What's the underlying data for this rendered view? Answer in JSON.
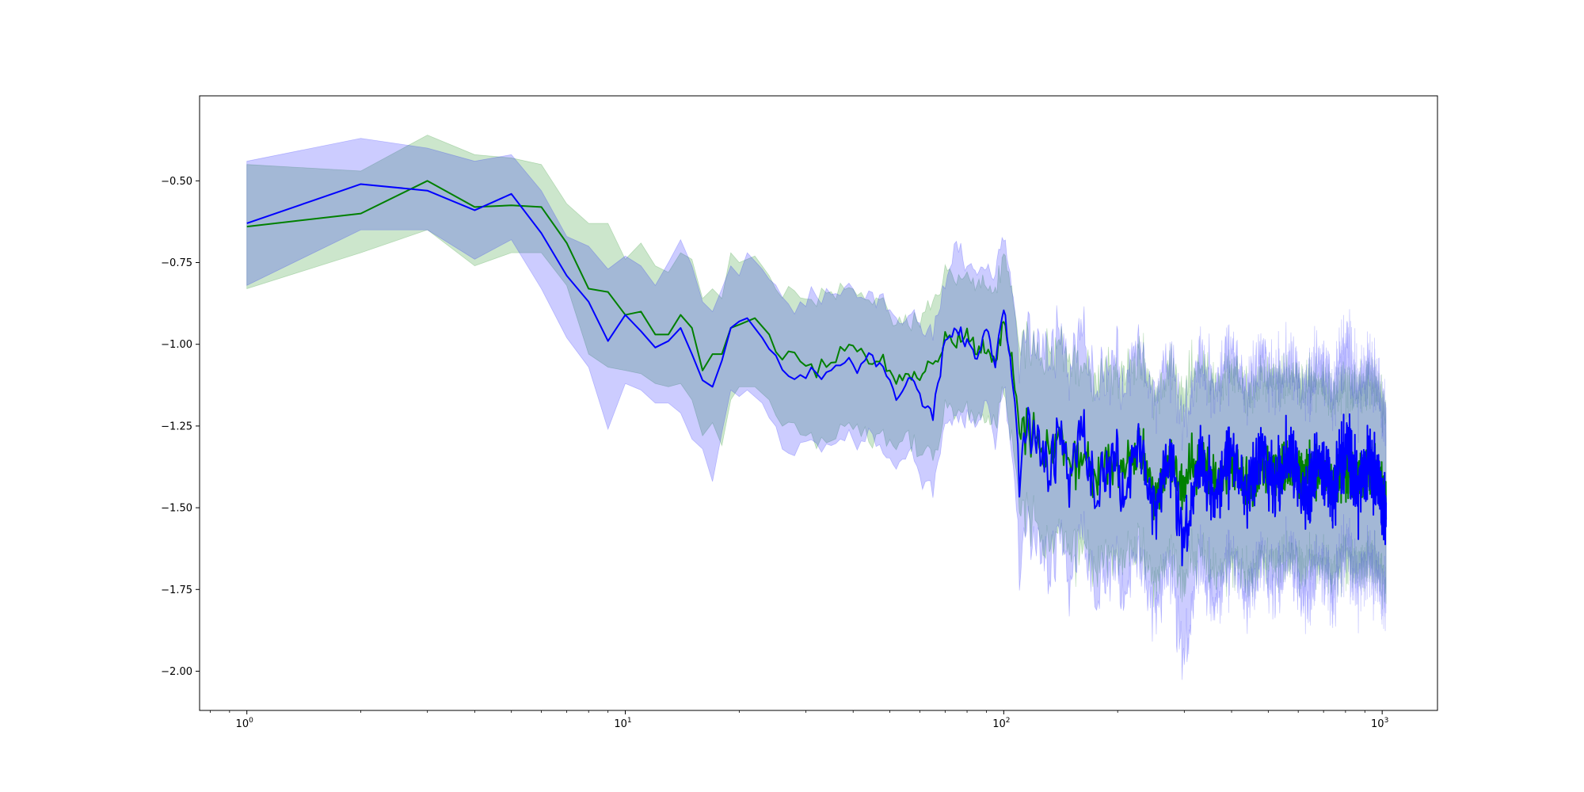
{
  "chart_data": {
    "type": "line",
    "title": "",
    "xlabel": "",
    "ylabel": "",
    "x_scale": "log",
    "xlim": [
      0.75,
      1400
    ],
    "ylim": [
      -2.12,
      -0.24
    ],
    "grid": false,
    "legend": "none",
    "x_ticks": [
      {
        "value": 1,
        "base": "10",
        "exp": "0"
      },
      {
        "value": 10,
        "base": "10",
        "exp": "1"
      },
      {
        "value": 100,
        "base": "10",
        "exp": "2"
      },
      {
        "value": 1000,
        "base": "10",
        "exp": "3"
      }
    ],
    "y_ticks": [
      {
        "value": -0.5,
        "label": "−0.50"
      },
      {
        "value": -0.75,
        "label": "−0.75"
      },
      {
        "value": -1.0,
        "label": "−1.00"
      },
      {
        "value": -1.25,
        "label": "−1.25"
      },
      {
        "value": -1.5,
        "label": "−1.50"
      },
      {
        "value": -1.75,
        "label": "−1.75"
      },
      {
        "value": -2.0,
        "label": "−2.00"
      }
    ],
    "x_range": [
      1,
      1024
    ],
    "series": [
      {
        "color": "#008000",
        "band_color": "#008000",
        "band_opacity": 0.2,
        "points": [
          [
            1,
            -0.64,
            -0.45,
            -0.83
          ],
          [
            2,
            -0.6,
            -0.47,
            -0.72
          ],
          [
            3,
            -0.5,
            -0.36,
            -0.65
          ],
          [
            4,
            -0.58,
            -0.42,
            -0.76
          ],
          [
            5,
            -0.575,
            -0.43,
            -0.72
          ],
          [
            6,
            -0.58,
            -0.45,
            -0.72
          ],
          [
            7,
            -0.69,
            -0.57,
            -0.82
          ],
          [
            8,
            -0.83,
            -0.63,
            -1.03
          ],
          [
            9,
            -0.84,
            -0.63,
            -1.07
          ],
          [
            10,
            -0.91,
            -0.74,
            -1.08
          ],
          [
            11,
            -0.9,
            -0.69,
            -1.09
          ],
          [
            12,
            -0.97,
            -0.76,
            -1.12
          ],
          [
            13,
            -0.97,
            -0.78,
            -1.13
          ],
          [
            14,
            -0.91,
            -0.72,
            -1.12
          ],
          [
            15,
            -0.95,
            -0.74,
            -1.17
          ],
          [
            16,
            -1.08,
            -0.86,
            -1.28
          ],
          [
            17,
            -1.03,
            -0.83,
            -1.24
          ],
          [
            18,
            -1.03,
            -0.86,
            -1.31
          ],
          [
            19,
            -0.95,
            -0.72,
            -1.17
          ],
          [
            20,
            -0.94,
            -0.75,
            -1.13
          ],
          [
            22,
            -0.92,
            -0.73,
            -1.13
          ],
          [
            24,
            -0.97,
            -0.79,
            -1.17
          ],
          [
            26,
            -1.05,
            -0.86,
            -1.26
          ],
          [
            28,
            -1.03,
            -0.84,
            -1.24
          ],
          [
            30,
            -1.06,
            -0.87,
            -1.28
          ],
          [
            33,
            -1.08,
            -0.85,
            -1.3
          ],
          [
            36,
            -1.06,
            -0.86,
            -1.29
          ],
          [
            40,
            -1.0,
            -0.83,
            -1.25
          ],
          [
            44,
            -1.04,
            -0.86,
            -1.27
          ],
          [
            48,
            -1.05,
            -0.87,
            -1.3
          ],
          [
            52,
            -1.12,
            -0.94,
            -1.32
          ],
          [
            56,
            -1.09,
            -0.93,
            -1.28
          ],
          [
            60,
            -1.1,
            -0.92,
            -1.33
          ],
          [
            65,
            -1.07,
            -0.88,
            -1.36
          ],
          [
            70,
            -0.98,
            -0.78,
            -1.19
          ],
          [
            75,
            -0.99,
            -0.8,
            -1.21
          ],
          [
            80,
            -0.96,
            -0.78,
            -1.19
          ],
          [
            85,
            -1.03,
            -0.83,
            -1.24
          ],
          [
            90,
            -1.0,
            -0.8,
            -1.21
          ],
          [
            95,
            -1.05,
            -0.84,
            -1.24
          ],
          [
            100,
            -0.93,
            -0.72,
            -1.13
          ],
          [
            105,
            -1.05,
            -0.84,
            -1.29
          ],
          [
            110,
            -1.25,
            -1.02,
            -1.46
          ],
          [
            120,
            -1.3,
            -1.08,
            -1.52
          ],
          [
            130,
            -1.35,
            -1.08,
            -1.6
          ],
          [
            140,
            -1.28,
            -1.04,
            -1.53
          ],
          [
            150,
            -1.4,
            -1.13,
            -1.63
          ],
          [
            160,
            -1.3,
            -1.06,
            -1.53
          ],
          [
            175,
            -1.42,
            -1.16,
            -1.66
          ],
          [
            190,
            -1.35,
            -1.11,
            -1.6
          ],
          [
            210,
            -1.4,
            -1.15,
            -1.64
          ],
          [
            230,
            -1.32,
            -1.08,
            -1.58
          ],
          [
            250,
            -1.45,
            -1.18,
            -1.68
          ],
          [
            275,
            -1.38,
            -1.13,
            -1.62
          ],
          [
            300,
            -1.42,
            -1.18,
            -1.68
          ],
          [
            330,
            -1.35,
            -1.1,
            -1.59
          ],
          [
            360,
            -1.41,
            -1.16,
            -1.66
          ],
          [
            400,
            -1.36,
            -1.12,
            -1.62
          ],
          [
            440,
            -1.43,
            -1.18,
            -1.67
          ],
          [
            480,
            -1.37,
            -1.13,
            -1.61
          ],
          [
            520,
            -1.4,
            -1.16,
            -1.65
          ],
          [
            570,
            -1.36,
            -1.13,
            -1.6
          ],
          [
            620,
            -1.41,
            -1.18,
            -1.66
          ],
          [
            680,
            -1.38,
            -1.14,
            -1.62
          ],
          [
            740,
            -1.42,
            -1.19,
            -1.66
          ],
          [
            800,
            -1.37,
            -1.15,
            -1.61
          ],
          [
            860,
            -1.41,
            -1.18,
            -1.65
          ],
          [
            920,
            -1.39,
            -1.16,
            -1.63
          ],
          [
            980,
            -1.4,
            -1.17,
            -1.64
          ],
          [
            1024,
            -1.47,
            -1.25,
            -1.7
          ]
        ]
      },
      {
        "color": "#0000ff",
        "band_color": "#0000ff",
        "band_opacity": 0.2,
        "points": [
          [
            1,
            -0.63,
            -0.44,
            -0.82
          ],
          [
            2,
            -0.51,
            -0.37,
            -0.65
          ],
          [
            3,
            -0.53,
            -0.4,
            -0.65
          ],
          [
            4,
            -0.59,
            -0.44,
            -0.74
          ],
          [
            5,
            -0.54,
            -0.42,
            -0.68
          ],
          [
            6,
            -0.66,
            -0.53,
            -0.83
          ],
          [
            7,
            -0.79,
            -0.67,
            -0.98
          ],
          [
            8,
            -0.87,
            -0.7,
            -1.07
          ],
          [
            9,
            -0.99,
            -0.77,
            -1.26
          ],
          [
            10,
            -0.91,
            -0.73,
            -1.12
          ],
          [
            11,
            -0.96,
            -0.76,
            -1.14
          ],
          [
            12,
            -1.01,
            -0.82,
            -1.18
          ],
          [
            13,
            -0.99,
            -0.75,
            -1.18
          ],
          [
            14,
            -0.95,
            -0.68,
            -1.21
          ],
          [
            15,
            -1.03,
            -0.76,
            -1.29
          ],
          [
            16,
            -1.11,
            -0.87,
            -1.32
          ],
          [
            17,
            -1.13,
            -0.9,
            -1.42
          ],
          [
            18,
            -1.05,
            -0.83,
            -1.27
          ],
          [
            19,
            -0.95,
            -0.76,
            -1.14
          ],
          [
            20,
            -0.93,
            -0.79,
            -1.16
          ],
          [
            21,
            -0.92,
            -0.72,
            -1.14
          ],
          [
            23,
            -0.98,
            -0.77,
            -1.18
          ],
          [
            26,
            -1.08,
            -0.86,
            -1.31
          ],
          [
            28,
            -1.1,
            -0.89,
            -1.34
          ],
          [
            30,
            -1.09,
            -0.87,
            -1.29
          ],
          [
            33,
            -1.11,
            -0.86,
            -1.33
          ],
          [
            36,
            -1.05,
            -0.82,
            -1.29
          ],
          [
            40,
            -1.07,
            -0.84,
            -1.31
          ],
          [
            44,
            -1.03,
            -0.84,
            -1.27
          ],
          [
            48,
            -1.07,
            -0.87,
            -1.32
          ],
          [
            52,
            -1.17,
            -0.94,
            -1.39
          ],
          [
            56,
            -1.1,
            -0.92,
            -1.31
          ],
          [
            60,
            -1.15,
            -0.94,
            -1.4
          ],
          [
            65,
            -1.22,
            -0.97,
            -1.45
          ],
          [
            70,
            -0.99,
            -0.83,
            -1.24
          ],
          [
            75,
            -0.96,
            -0.69,
            -1.22
          ],
          [
            80,
            -0.99,
            -0.76,
            -1.22
          ],
          [
            85,
            -1.05,
            -0.79,
            -1.26
          ],
          [
            90,
            -0.94,
            -0.75,
            -1.16
          ],
          [
            95,
            -1.07,
            -0.8,
            -1.31
          ],
          [
            100,
            -0.89,
            -0.66,
            -1.12
          ],
          [
            105,
            -1.08,
            -0.82,
            -1.33
          ],
          [
            110,
            -1.35,
            -1.04,
            -1.6
          ],
          [
            120,
            -1.22,
            -0.99,
            -1.5
          ],
          [
            130,
            -1.42,
            -1.1,
            -1.68
          ],
          [
            140,
            -1.3,
            -1.03,
            -1.57
          ],
          [
            150,
            -1.45,
            -1.16,
            -1.75
          ],
          [
            160,
            -1.29,
            -1.02,
            -1.56
          ],
          [
            175,
            -1.45,
            -1.15,
            -1.72
          ],
          [
            190,
            -1.33,
            -1.08,
            -1.62
          ],
          [
            210,
            -1.46,
            -1.17,
            -1.72
          ],
          [
            230,
            -1.3,
            -1.04,
            -1.61
          ],
          [
            250,
            -1.5,
            -1.2,
            -1.76
          ],
          [
            275,
            -1.36,
            -1.1,
            -1.66
          ],
          [
            300,
            -1.58,
            -1.25,
            -1.9
          ],
          [
            330,
            -1.33,
            -1.06,
            -1.6
          ],
          [
            360,
            -1.46,
            -1.17,
            -1.75
          ],
          [
            400,
            -1.34,
            -1.06,
            -1.62
          ],
          [
            440,
            -1.47,
            -1.19,
            -1.76
          ],
          [
            480,
            -1.31,
            -1.05,
            -1.6
          ],
          [
            520,
            -1.44,
            -1.16,
            -1.72
          ],
          [
            570,
            -1.33,
            -1.09,
            -1.6
          ],
          [
            620,
            -1.48,
            -1.19,
            -1.76
          ],
          [
            680,
            -1.35,
            -1.08,
            -1.62
          ],
          [
            740,
            -1.46,
            -1.19,
            -1.74
          ],
          [
            800,
            -1.3,
            -1.02,
            -1.58
          ],
          [
            860,
            -1.44,
            -1.17,
            -1.7
          ],
          [
            920,
            -1.36,
            -1.1,
            -1.64
          ],
          [
            980,
            -1.43,
            -1.17,
            -1.69
          ],
          [
            1024,
            -1.5,
            -1.24,
            -1.72
          ]
        ]
      }
    ]
  }
}
